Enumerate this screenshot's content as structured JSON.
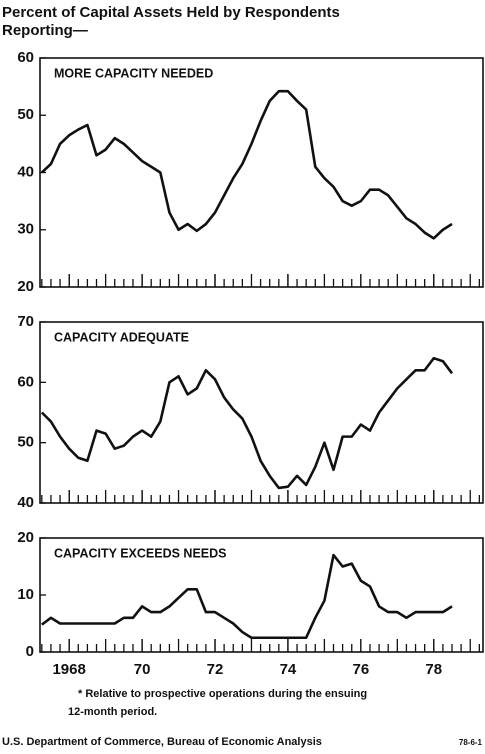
{
  "title": [
    "Percent of Capital Assets Held by Respondents",
    "Reporting—"
  ],
  "footnote": [
    "* Relative to prospective operations during the ensuing",
    "12-month period."
  ],
  "source": "U.S. Department of Commerce, Bureau of Economic Analysis",
  "chart_id": "78-6-1",
  "chart_data": [
    {
      "type": "line",
      "title": "MORE CAPACITY NEEDED",
      "x": [
        1967.25,
        1967.5,
        1967.75,
        1968,
        1968.25,
        1968.5,
        1968.75,
        1969,
        1969.25,
        1969.5,
        1969.75,
        1970,
        1970.25,
        1970.5,
        1970.75,
        1971,
        1971.25,
        1971.5,
        1971.75,
        1972,
        1972.25,
        1972.5,
        1972.75,
        1973,
        1973.25,
        1973.5,
        1973.75,
        1974,
        1974.25,
        1974.5,
        1974.75,
        1975,
        1975.25,
        1975.5,
        1975.75,
        1976,
        1976.25,
        1976.5,
        1976.75,
        1977,
        1977.25,
        1977.5,
        1977.75,
        1978,
        1978.25,
        1978.5
      ],
      "series": [
        {
          "name": "More capacity needed",
          "color": "#111111",
          "values": [
            40,
            41.5,
            45,
            46.5,
            47.5,
            48.3,
            43,
            44,
            46,
            45,
            43.5,
            42,
            41,
            40,
            33,
            30,
            31,
            29.8,
            31,
            33,
            36,
            39,
            41.5,
            45,
            49,
            52.5,
            54.2,
            54.2,
            52.5,
            51,
            41,
            39,
            37.5,
            35,
            34.2,
            35,
            37,
            37,
            36,
            34,
            32,
            31,
            29.5,
            28.5,
            30,
            31
          ]
        }
      ],
      "xlim": [
        1967.2,
        1979.35
      ],
      "xticks": [
        {
          "value": 1968,
          "label": "1968"
        },
        {
          "value": 1970,
          "label": "70"
        },
        {
          "value": 1972,
          "label": "72"
        },
        {
          "value": 1974,
          "label": "74"
        },
        {
          "value": 1976,
          "label": "76"
        },
        {
          "value": 1978,
          "label": "78"
        }
      ],
      "ylim": [
        20,
        60
      ],
      "yticks": [
        20,
        30,
        40,
        50,
        60
      ]
    },
    {
      "type": "line",
      "title": "CAPACITY ADEQUATE",
      "x": [
        1967.25,
        1967.5,
        1967.75,
        1968,
        1968.25,
        1968.5,
        1968.75,
        1969,
        1969.25,
        1969.5,
        1969.75,
        1970,
        1970.25,
        1970.5,
        1970.75,
        1971,
        1971.25,
        1971.5,
        1971.75,
        1972,
        1972.25,
        1972.5,
        1972.75,
        1973,
        1973.25,
        1973.5,
        1973.75,
        1974,
        1974.25,
        1974.5,
        1974.75,
        1975,
        1975.25,
        1975.5,
        1975.75,
        1976,
        1976.25,
        1976.5,
        1976.75,
        1977,
        1977.25,
        1977.5,
        1977.75,
        1978,
        1978.25,
        1978.5
      ],
      "series": [
        {
          "name": "Capacity adequate",
          "color": "#111111",
          "values": [
            55,
            53.5,
            51,
            49,
            47.5,
            47,
            52,
            51.5,
            49,
            49.5,
            51,
            52,
            51,
            53.5,
            60,
            61,
            58,
            59,
            62,
            60.5,
            57.5,
            55.5,
            54,
            51,
            47,
            44.5,
            42.5,
            42.7,
            44.5,
            43,
            46,
            50,
            45.5,
            51,
            51,
            53,
            52,
            55,
            57,
            59,
            60.5,
            62,
            62,
            64,
            63.5,
            61.5
          ]
        }
      ],
      "xlim": [
        1967.2,
        1979.35
      ],
      "xticks": [
        {
          "value": 1968,
          "label": "1968"
        },
        {
          "value": 1970,
          "label": "70"
        },
        {
          "value": 1972,
          "label": "72"
        },
        {
          "value": 1974,
          "label": "74"
        },
        {
          "value": 1976,
          "label": "76"
        },
        {
          "value": 1978,
          "label": "78"
        }
      ],
      "ylim": [
        40,
        70
      ],
      "yticks": [
        40,
        50,
        60,
        70
      ]
    },
    {
      "type": "line",
      "title": "CAPACITY EXCEEDS NEEDS",
      "x": [
        1967.25,
        1967.5,
        1967.75,
        1968,
        1968.25,
        1968.5,
        1968.75,
        1969,
        1969.25,
        1969.5,
        1969.75,
        1970,
        1970.25,
        1970.5,
        1970.75,
        1971,
        1971.25,
        1971.5,
        1971.75,
        1972,
        1972.25,
        1972.5,
        1972.75,
        1973,
        1973.25,
        1973.5,
        1973.75,
        1974,
        1974.25,
        1974.5,
        1974.75,
        1975,
        1975.25,
        1975.5,
        1975.75,
        1976,
        1976.25,
        1976.5,
        1976.75,
        1977,
        1977.25,
        1977.5,
        1977.75,
        1978,
        1978.25,
        1978.5
      ],
      "series": [
        {
          "name": "Capacity exceeds needs",
          "color": "#111111",
          "values": [
            4.8,
            6,
            5,
            5,
            5,
            5,
            5,
            5,
            5,
            6,
            6,
            8,
            7,
            7,
            8,
            9.5,
            11,
            11,
            7,
            7,
            6,
            5,
            3.5,
            2.5,
            2.5,
            2.5,
            2.5,
            2.5,
            2.5,
            2.5,
            6,
            9,
            17,
            15,
            15.5,
            12.5,
            11.5,
            8,
            7,
            7,
            6,
            7,
            7,
            7,
            7,
            8
          ]
        }
      ],
      "xlim": [
        1967.2,
        1979.35
      ],
      "xticks": [
        {
          "value": 1968,
          "label": "1968"
        },
        {
          "value": 1970,
          "label": "70"
        },
        {
          "value": 1972,
          "label": "72"
        },
        {
          "value": 1974,
          "label": "74"
        },
        {
          "value": 1976,
          "label": "76"
        },
        {
          "value": 1978,
          "label": "78"
        }
      ],
      "ylim": [
        0,
        20
      ],
      "yticks": [
        0,
        10,
        20
      ],
      "show_x_labels": true
    }
  ]
}
